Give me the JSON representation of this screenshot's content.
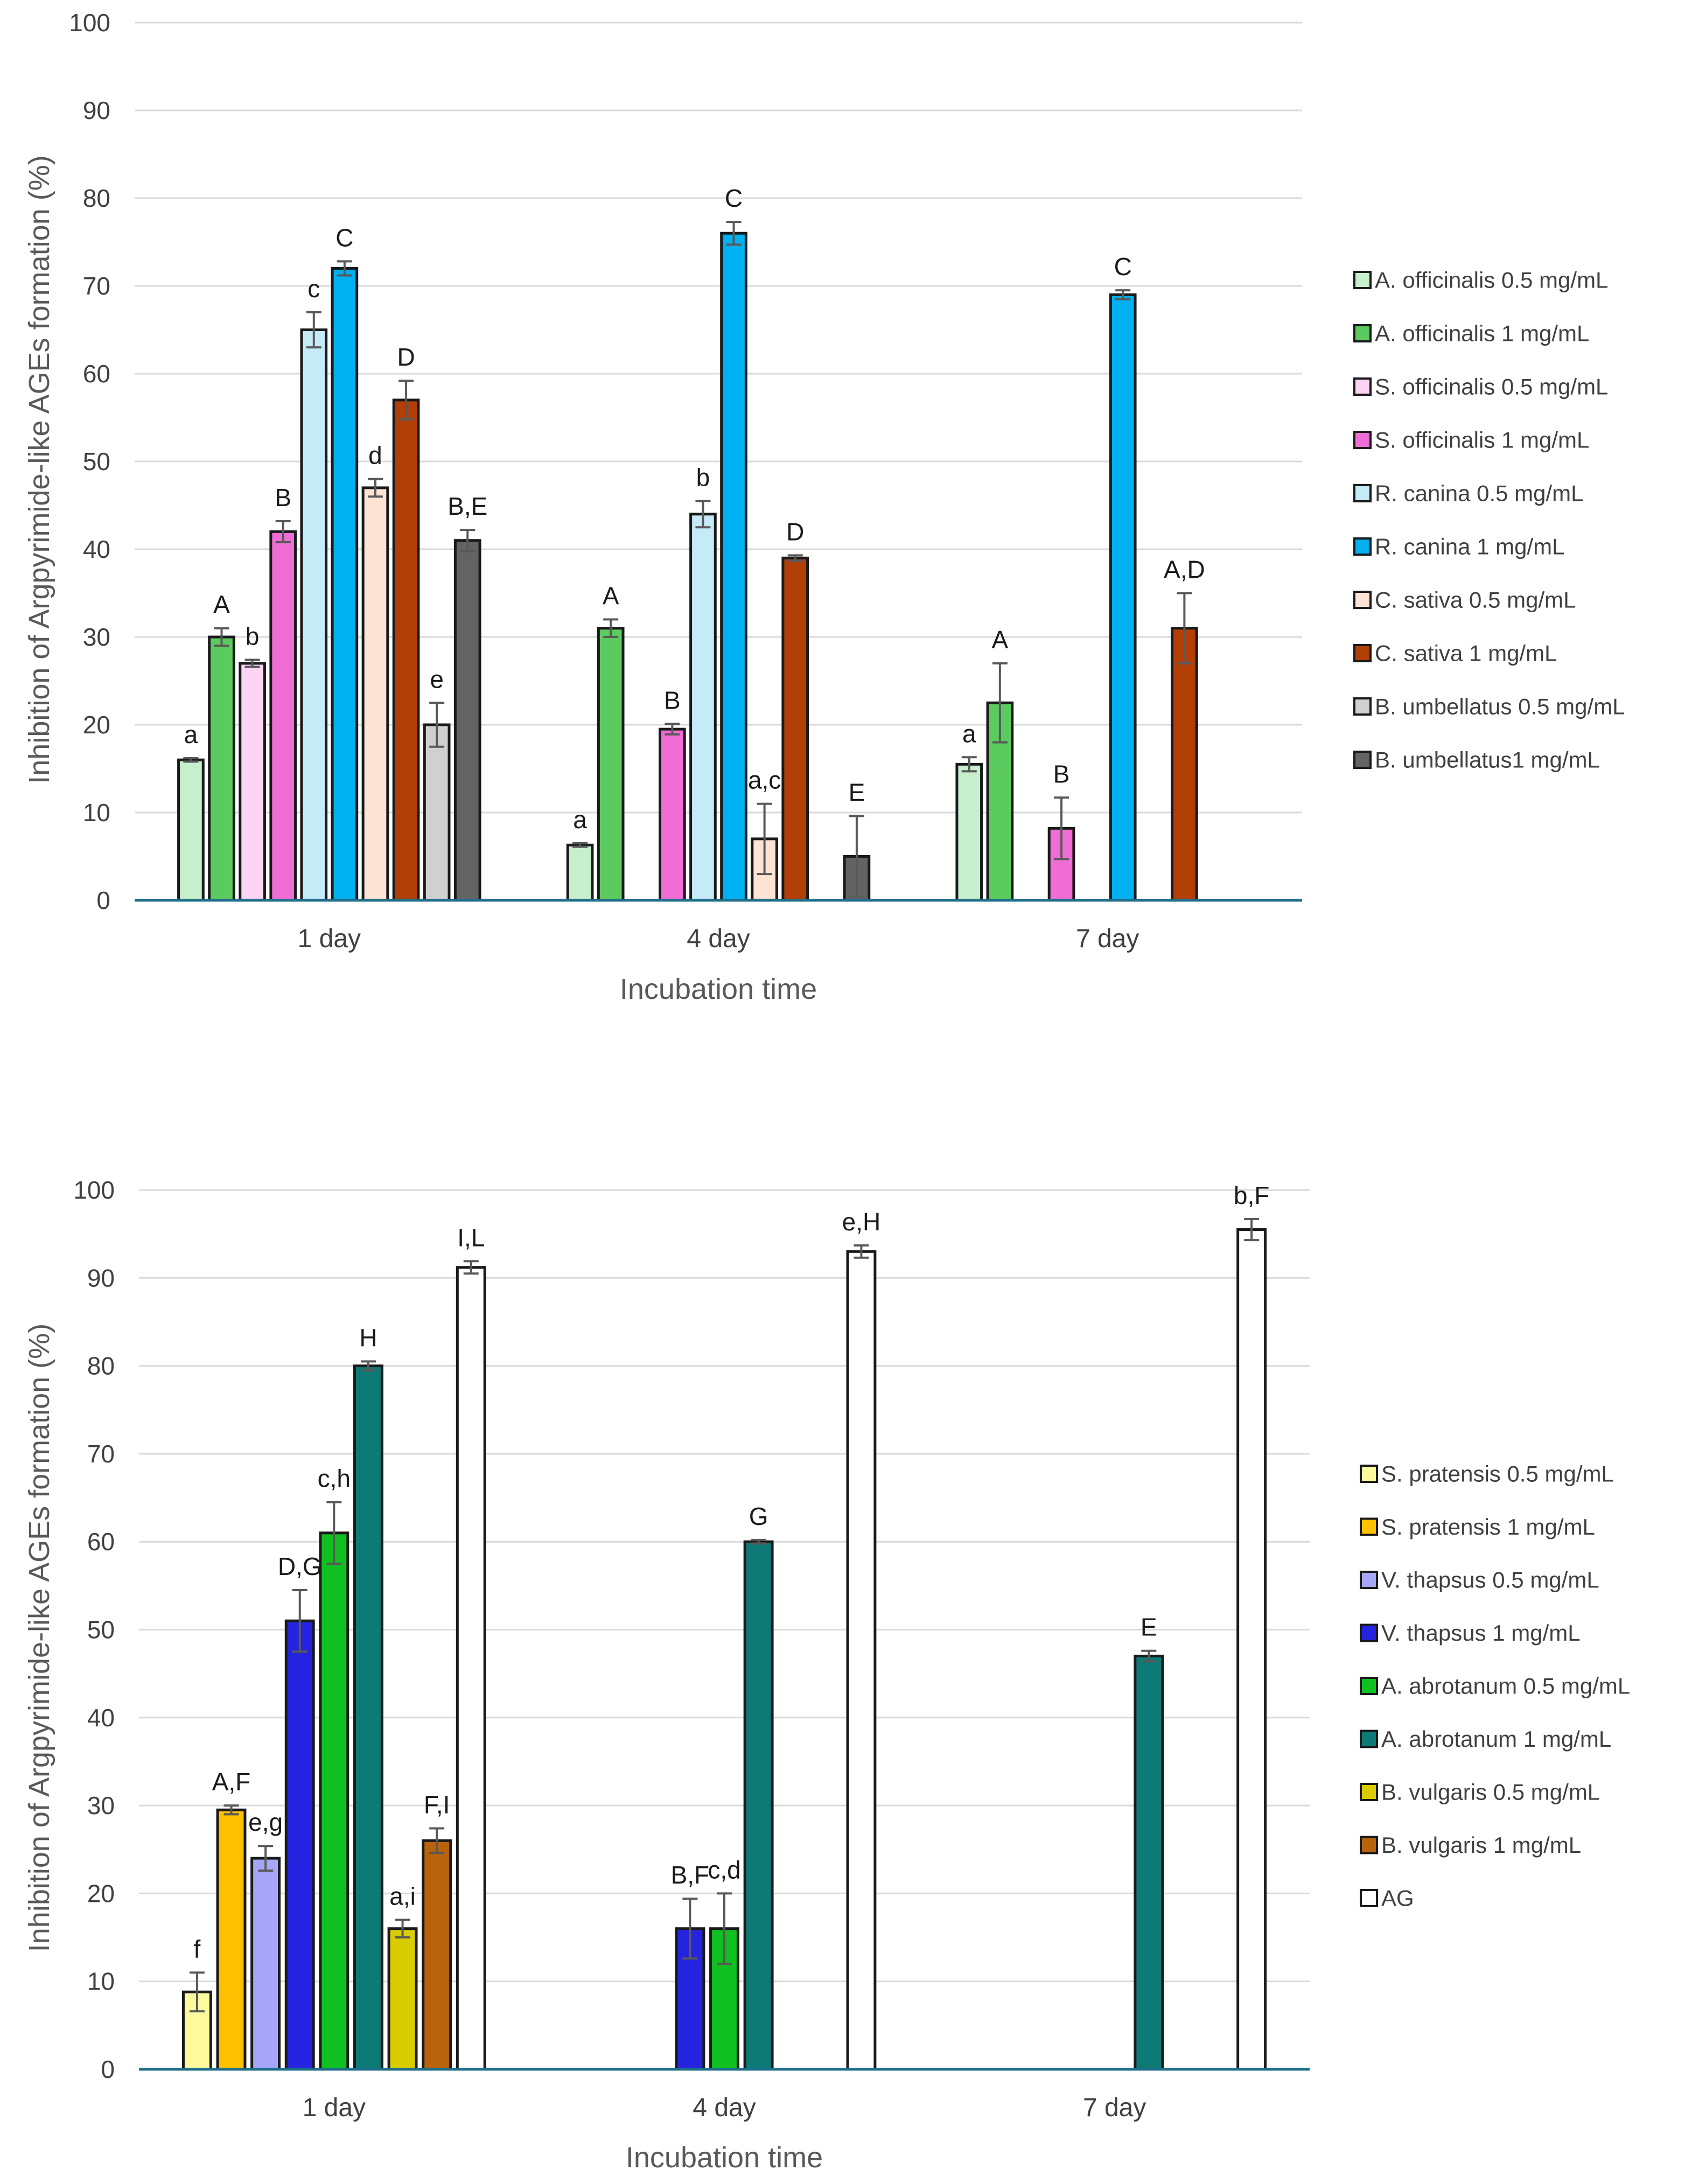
{
  "chart_data": [
    {
      "type": "bar",
      "title": "",
      "xlabel": "Incubation time",
      "ylabel": "Inhibition of Argpyrimide-like AGEs formation (%)",
      "ylim": [
        0,
        100
      ],
      "yticks": [
        0,
        10,
        20,
        30,
        40,
        50,
        60,
        70,
        80,
        90,
        100
      ],
      "grid": true,
      "legend_position": "right",
      "categories": [
        "1 day",
        "4 day",
        "7 day"
      ],
      "series": [
        {
          "name": "A. officinalis 0.5 mg/mL",
          "color": "#c6efce",
          "values": [
            16,
            6.3,
            15.5
          ],
          "errors": [
            0.2,
            0.2,
            0.8
          ],
          "labels": [
            "a",
            "a",
            "a"
          ]
        },
        {
          "name": "A.  officinalis 1 mg/mL",
          "color": "#5ccb5f",
          "values": [
            30,
            31,
            22.5
          ],
          "errors": [
            1.0,
            1.0,
            4.5
          ],
          "labels": [
            "A",
            "A",
            "A"
          ]
        },
        {
          "name": "S. officinalis 0.5 mg/mL",
          "color": "#fcd5f5",
          "values": [
            27,
            null,
            null
          ],
          "errors": [
            0.4,
            null,
            null
          ],
          "labels": [
            "b",
            "",
            ""
          ]
        },
        {
          "name": "S. officinalis 1 mg/mL",
          "color": "#f06dd5",
          "values": [
            42,
            19.5,
            8.2
          ],
          "errors": [
            1.2,
            0.6,
            3.5
          ],
          "labels": [
            "B",
            "B",
            "B"
          ]
        },
        {
          "name": "R. canina 0.5 mg/mL",
          "color": "#c5eaf8",
          "values": [
            65,
            44,
            null
          ],
          "errors": [
            2.0,
            1.5,
            null
          ],
          "labels": [
            "c",
            "b",
            ""
          ]
        },
        {
          "name": "R. canina 1 mg/mL",
          "color": "#00b0f0",
          "values": [
            72,
            76,
            69
          ],
          "errors": [
            0.8,
            1.3,
            0.5
          ],
          "labels": [
            "C",
            "C",
            "C"
          ]
        },
        {
          "name": "C. sativa 0.5 mg/mL",
          "color": "#fde3d4",
          "values": [
            47,
            7,
            null
          ],
          "errors": [
            1.0,
            4.0,
            null
          ],
          "labels": [
            "d",
            "a,c",
            ""
          ]
        },
        {
          "name": "C. sativa 1 mg/mL",
          "color": "#b13f06",
          "values": [
            57,
            39,
            31
          ],
          "errors": [
            2.2,
            0.3,
            4.0
          ],
          "labels": [
            "D",
            "D",
            "A,D"
          ]
        },
        {
          "name": "B. umbellatus 0.5 mg/mL",
          "color": "#d0d0d0",
          "values": [
            20,
            null,
            null
          ],
          "errors": [
            2.5,
            null,
            null
          ],
          "labels": [
            "e",
            "",
            ""
          ]
        },
        {
          "name": "B. umbellatus1 mg/mL",
          "color": "#636363",
          "values": [
            41,
            5,
            null
          ],
          "errors": [
            1.2,
            4.6,
            null
          ],
          "labels": [
            "B,E",
            "E",
            ""
          ]
        }
      ]
    },
    {
      "type": "bar",
      "title": "",
      "xlabel": "Incubation time",
      "ylabel": "Inhibition of Argpyrimide-like AGEs formation (%)",
      "ylim": [
        0,
        100
      ],
      "yticks": [
        0,
        10,
        20,
        30,
        40,
        50,
        60,
        70,
        80,
        90,
        100
      ],
      "grid": true,
      "legend_position": "right",
      "categories": [
        "1 day",
        "4 day",
        "7 day"
      ],
      "series": [
        {
          "name": "S. pratensis 0.5 mg/mL",
          "color": "#fdfa9e",
          "values": [
            8.8,
            null,
            null
          ],
          "errors": [
            2.2,
            null,
            null
          ],
          "labels": [
            "f",
            "",
            ""
          ]
        },
        {
          "name": "S. pratensis 1 mg/mL",
          "color": "#ffc000",
          "values": [
            29.5,
            null,
            null
          ],
          "errors": [
            0.5,
            null,
            null
          ],
          "labels": [
            "A,F",
            "",
            ""
          ]
        },
        {
          "name": "V. thapsus 0.5 mg/mL",
          "color": "#a6a6f8",
          "values": [
            24,
            null,
            null
          ],
          "errors": [
            1.4,
            null,
            null
          ],
          "labels": [
            "e,g",
            "",
            ""
          ]
        },
        {
          "name": "V. thapsus 1 mg/mL",
          "color": "#2424e0",
          "values": [
            51,
            16,
            null
          ],
          "errors": [
            3.5,
            3.4,
            null
          ],
          "labels": [
            "D,G",
            "B,F",
            ""
          ]
        },
        {
          "name": "A. abrotanum 0.5 mg/mL",
          "color": "#10c020",
          "values": [
            61,
            16,
            null
          ],
          "errors": [
            3.5,
            4.0,
            null
          ],
          "labels": [
            "c,h",
            "c,d",
            ""
          ]
        },
        {
          "name": "A. abrotanum 1 mg/mL",
          "color": "#0e7a76",
          "values": [
            80,
            60,
            47
          ],
          "errors": [
            0.5,
            0.2,
            0.6
          ],
          "labels": [
            "H",
            "G",
            "E"
          ]
        },
        {
          "name": "B. vulgaris 0.5 mg/mL",
          "color": "#d9cc00",
          "values": [
            16,
            null,
            null
          ],
          "errors": [
            1.0,
            null,
            null
          ],
          "labels": [
            "a,i",
            "",
            ""
          ]
        },
        {
          "name": "B. vulgaris 1 mg/mL",
          "color": "#b8620c",
          "values": [
            26,
            null,
            null
          ],
          "errors": [
            1.4,
            null,
            null
          ],
          "labels": [
            "F,I",
            "",
            ""
          ]
        },
        {
          "name": "AG",
          "color": "#ffffff",
          "values": [
            91.2,
            93,
            95.5
          ],
          "errors": [
            0.7,
            0.7,
            1.2
          ],
          "labels": [
            "I,L",
            "e,H",
            "b,F"
          ]
        }
      ]
    }
  ]
}
